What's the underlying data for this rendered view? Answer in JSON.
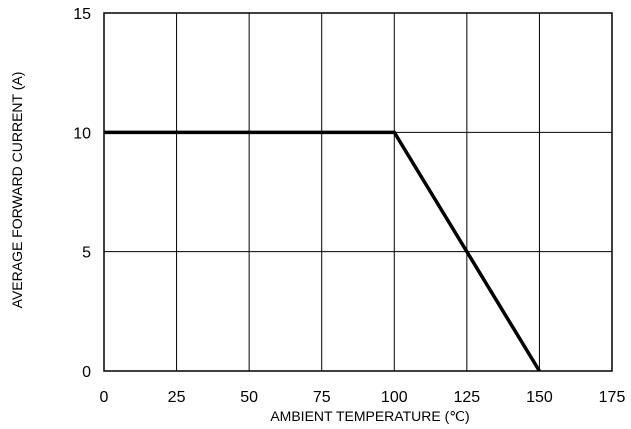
{
  "chart_data": {
    "type": "line",
    "xlabel": "AMBIENT TEMPERATURE (℃)",
    "ylabel": "AVERAGE FORWARD CURRENT (A)",
    "xlim": [
      0,
      175
    ],
    "ylim": [
      0,
      15
    ],
    "x_ticks": [
      "0",
      "25",
      "50",
      "75",
      "100",
      "125",
      "150",
      "175"
    ],
    "y_ticks": [
      "0",
      "5",
      "10",
      "15"
    ],
    "grid": true,
    "series": [
      {
        "x": [
          0,
          100,
          150
        ],
        "y": [
          10,
          10,
          0
        ]
      }
    ]
  }
}
